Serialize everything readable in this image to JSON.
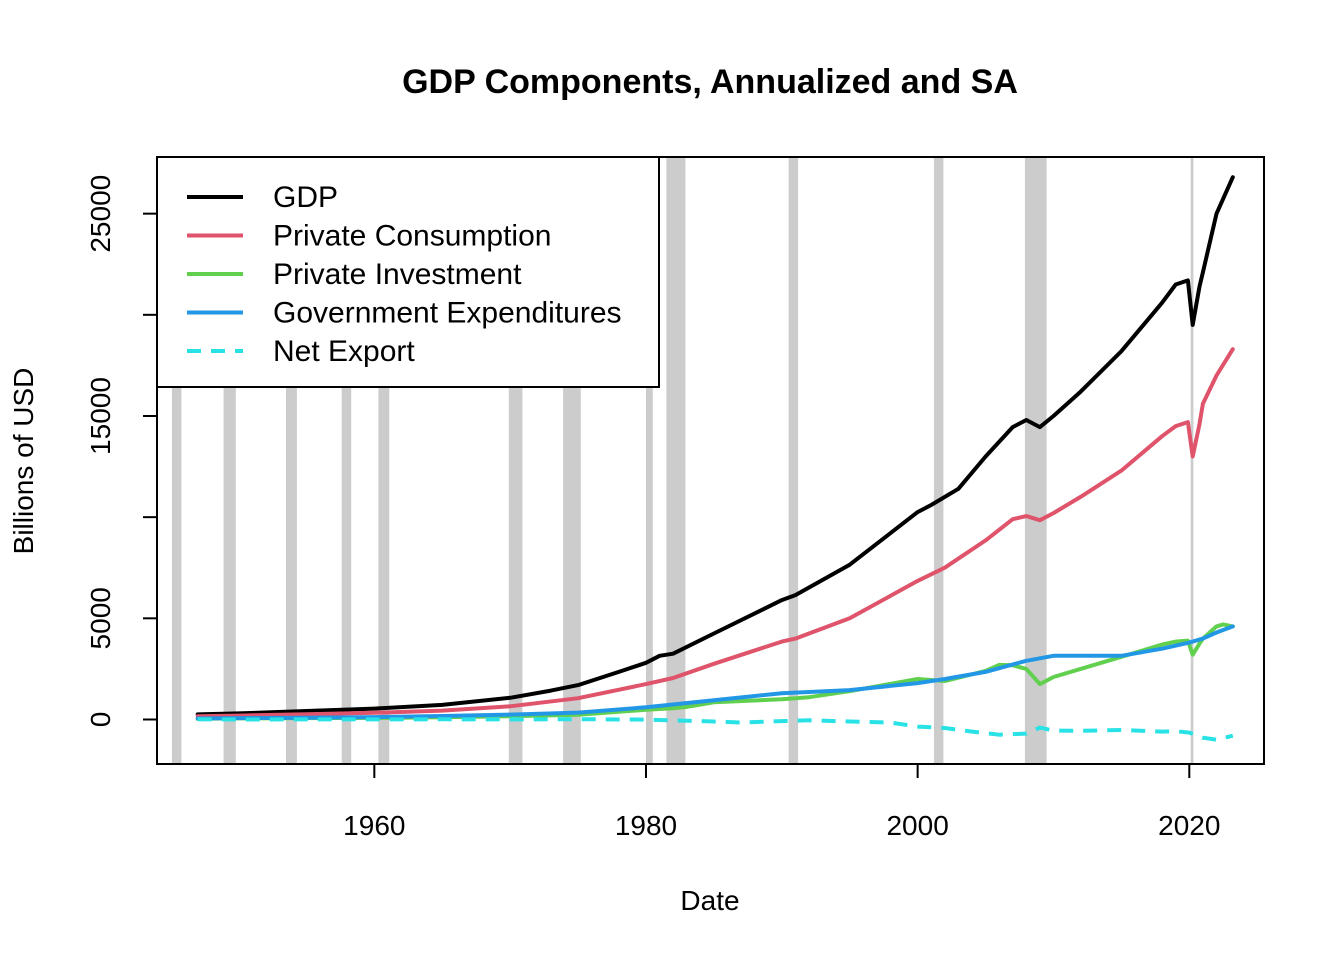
{
  "chart_data": {
    "type": "line",
    "title": "GDP Components, Annualized and SA",
    "xlabel": "Date",
    "ylabel": "Billions of USD",
    "xlim": [
      1944,
      2025.5
    ],
    "ylim": [
      -2200,
      27800
    ],
    "x_ticks": [
      1960,
      1980,
      2000,
      2020
    ],
    "y_ticks": [
      0,
      5000,
      10000,
      15000,
      20000,
      25000
    ],
    "y_tick_labels_shown": [
      "0",
      "5000",
      "15000",
      "25000"
    ],
    "grid": false,
    "legend_position": "top-left",
    "recessions": [
      [
        1945.1,
        1945.8
      ],
      [
        1948.9,
        1949.8
      ],
      [
        1953.5,
        1954.3
      ],
      [
        1957.6,
        1958.3
      ],
      [
        1960.3,
        1961.1
      ],
      [
        1969.9,
        1970.9
      ],
      [
        1973.9,
        1975.2
      ],
      [
        1980.0,
        1980.5
      ],
      [
        1981.5,
        1982.9
      ],
      [
        1990.5,
        1991.2
      ],
      [
        2001.2,
        2001.9
      ],
      [
        2007.9,
        2009.5
      ],
      [
        2020.1,
        2020.3
      ]
    ],
    "recession_color": "#cccccc",
    "series": [
      {
        "name": "GDP",
        "color": "#000000",
        "dash": "solid",
        "points": [
          [
            1947,
            250
          ],
          [
            1950,
            300
          ],
          [
            1955,
            420
          ],
          [
            1960,
            540
          ],
          [
            1965,
            720
          ],
          [
            1970,
            1070
          ],
          [
            1973,
            1430
          ],
          [
            1975,
            1700
          ],
          [
            1978,
            2350
          ],
          [
            1980,
            2800
          ],
          [
            1981,
            3150
          ],
          [
            1982,
            3250
          ],
          [
            1985,
            4250
          ],
          [
            1990,
            5900
          ],
          [
            1991,
            6150
          ],
          [
            1995,
            7650
          ],
          [
            2000,
            10250
          ],
          [
            2001,
            10600
          ],
          [
            2003,
            11400
          ],
          [
            2005,
            13000
          ],
          [
            2007,
            14450
          ],
          [
            2008,
            14800
          ],
          [
            2009,
            14450
          ],
          [
            2010,
            15000
          ],
          [
            2012,
            16200
          ],
          [
            2015,
            18200
          ],
          [
            2018,
            20600
          ],
          [
            2019,
            21500
          ],
          [
            2019.9,
            21700
          ],
          [
            2020.25,
            19500
          ],
          [
            2020.75,
            21400
          ],
          [
            2021,
            22100
          ],
          [
            2022,
            25000
          ],
          [
            2023.2,
            26800
          ]
        ]
      },
      {
        "name": "Private Consumption",
        "color": "#df536b",
        "dash": "solid",
        "points": [
          [
            1947,
            160
          ],
          [
            1950,
            190
          ],
          [
            1955,
            260
          ],
          [
            1960,
            330
          ],
          [
            1965,
            440
          ],
          [
            1970,
            650
          ],
          [
            1975,
            1050
          ],
          [
            1980,
            1750
          ],
          [
            1982,
            2050
          ],
          [
            1985,
            2750
          ],
          [
            1990,
            3850
          ],
          [
            1991,
            4000
          ],
          [
            1995,
            5000
          ],
          [
            2000,
            6850
          ],
          [
            2002,
            7500
          ],
          [
            2005,
            8850
          ],
          [
            2007,
            9900
          ],
          [
            2008,
            10050
          ],
          [
            2009,
            9850
          ],
          [
            2010,
            10200
          ],
          [
            2012,
            11000
          ],
          [
            2015,
            12300
          ],
          [
            2018,
            14000
          ],
          [
            2019,
            14500
          ],
          [
            2019.9,
            14700
          ],
          [
            2020.25,
            13000
          ],
          [
            2020.75,
            14600
          ],
          [
            2021,
            15600
          ],
          [
            2022,
            17000
          ],
          [
            2023.2,
            18300
          ]
        ]
      },
      {
        "name": "Private Investment",
        "color": "#61d04f",
        "dash": "solid",
        "points": [
          [
            1947,
            35
          ],
          [
            1950,
            55
          ],
          [
            1955,
            70
          ],
          [
            1960,
            80
          ],
          [
            1965,
            110
          ],
          [
            1970,
            160
          ],
          [
            1975,
            230
          ],
          [
            1978,
            380
          ],
          [
            1980,
            480
          ],
          [
            1982,
            560
          ],
          [
            1983,
            620
          ],
          [
            1985,
            850
          ],
          [
            1990,
            1000
          ],
          [
            1992,
            1100
          ],
          [
            1995,
            1400
          ],
          [
            2000,
            2000
          ],
          [
            2002,
            1900
          ],
          [
            2005,
            2400
          ],
          [
            2006,
            2700
          ],
          [
            2007,
            2680
          ],
          [
            2008,
            2500
          ],
          [
            2009,
            1750
          ],
          [
            2010,
            2100
          ],
          [
            2012,
            2500
          ],
          [
            2015,
            3100
          ],
          [
            2018,
            3700
          ],
          [
            2019,
            3850
          ],
          [
            2019.9,
            3900
          ],
          [
            2020.25,
            3200
          ],
          [
            2020.75,
            3750
          ],
          [
            2021,
            4000
          ],
          [
            2022,
            4600
          ],
          [
            2022.5,
            4700
          ],
          [
            2023.2,
            4600
          ]
        ]
      },
      {
        "name": "Government Expenditures",
        "color": "#2297e6",
        "dash": "solid",
        "points": [
          [
            1947,
            50
          ],
          [
            1950,
            70
          ],
          [
            1955,
            90
          ],
          [
            1960,
            120
          ],
          [
            1965,
            170
          ],
          [
            1970,
            240
          ],
          [
            1975,
            340
          ],
          [
            1980,
            600
          ],
          [
            1985,
            950
          ],
          [
            1990,
            1300
          ],
          [
            1995,
            1450
          ],
          [
            2000,
            1800
          ],
          [
            2002,
            2000
          ],
          [
            2005,
            2350
          ],
          [
            2008,
            2900
          ],
          [
            2010,
            3150
          ],
          [
            2012,
            3150
          ],
          [
            2015,
            3150
          ],
          [
            2018,
            3500
          ],
          [
            2020,
            3800
          ],
          [
            2021,
            4000
          ],
          [
            2022,
            4300
          ],
          [
            2023.2,
            4600
          ]
        ]
      },
      {
        "name": "Net Export",
        "color": "#28e2e5",
        "dash": "dashed",
        "points": [
          [
            1947,
            10
          ],
          [
            1950,
            0
          ],
          [
            1955,
            5
          ],
          [
            1960,
            5
          ],
          [
            1965,
            10
          ],
          [
            1970,
            5
          ],
          [
            1975,
            15
          ],
          [
            1980,
            -5
          ],
          [
            1985,
            -100
          ],
          [
            1987,
            -150
          ],
          [
            1990,
            -80
          ],
          [
            1992,
            -40
          ],
          [
            1995,
            -100
          ],
          [
            1998,
            -150
          ],
          [
            2000,
            -350
          ],
          [
            2002,
            -420
          ],
          [
            2004,
            -600
          ],
          [
            2006,
            -750
          ],
          [
            2008,
            -700
          ],
          [
            2009,
            -400
          ],
          [
            2010,
            -550
          ],
          [
            2012,
            -560
          ],
          [
            2015,
            -520
          ],
          [
            2018,
            -600
          ],
          [
            2019,
            -580
          ],
          [
            2020,
            -650
          ],
          [
            2021,
            -900
          ],
          [
            2022,
            -1000
          ],
          [
            2023.2,
            -800
          ]
        ]
      }
    ]
  }
}
